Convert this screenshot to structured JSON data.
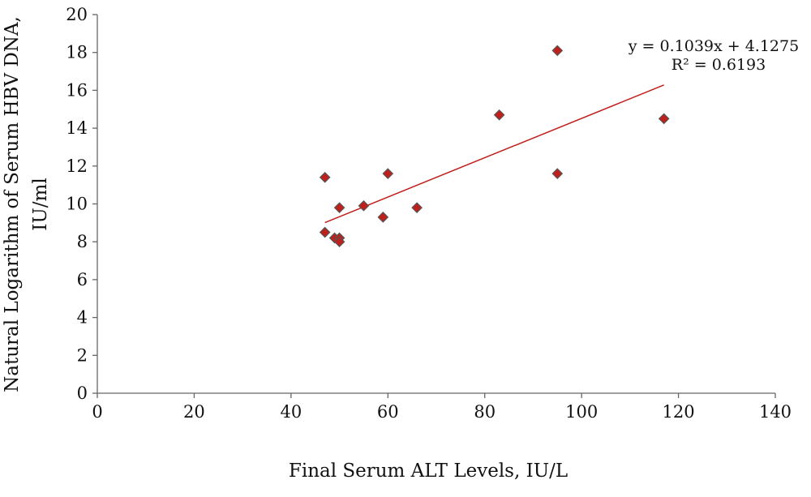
{
  "chart_data": {
    "type": "scatter",
    "title": "",
    "xlabel": "Final Serum ALT Levels, IU/L",
    "ylabel_lines": [
      "Natural Logarithm of Serum HBV DNA,",
      "IU/ml"
    ],
    "xlim": [
      0,
      140
    ],
    "ylim": [
      0,
      20
    ],
    "x_ticks": [
      "0",
      "20",
      "40",
      "60",
      "80",
      "100",
      "120",
      "140"
    ],
    "y_ticks": [
      "0",
      "2",
      "4",
      "6",
      "8",
      "10",
      "12",
      "14",
      "16",
      "18",
      "20"
    ],
    "grid": false,
    "legend": "none",
    "marker_color": "#c0201c",
    "marker_edge": "#555555",
    "trendline_color": "#c0201c",
    "points": [
      {
        "x": 47,
        "y": 11.4
      },
      {
        "x": 47,
        "y": 8.5
      },
      {
        "x": 49,
        "y": 8.2
      },
      {
        "x": 50,
        "y": 8.2
      },
      {
        "x": 50,
        "y": 8.0
      },
      {
        "x": 50,
        "y": 9.8
      },
      {
        "x": 55,
        "y": 9.9
      },
      {
        "x": 59,
        "y": 9.3
      },
      {
        "x": 60,
        "y": 11.6
      },
      {
        "x": 66,
        "y": 9.8
      },
      {
        "x": 83,
        "y": 14.7
      },
      {
        "x": 95,
        "y": 18.1
      },
      {
        "x": 95,
        "y": 11.6
      },
      {
        "x": 117,
        "y": 14.5
      }
    ],
    "trendline": {
      "slope": 0.1039,
      "intercept": 4.1275,
      "x_range": [
        47,
        117
      ],
      "equation_label": "y = 0.1039x + 4.1275",
      "r2_label": "R² = 0.6193"
    }
  }
}
